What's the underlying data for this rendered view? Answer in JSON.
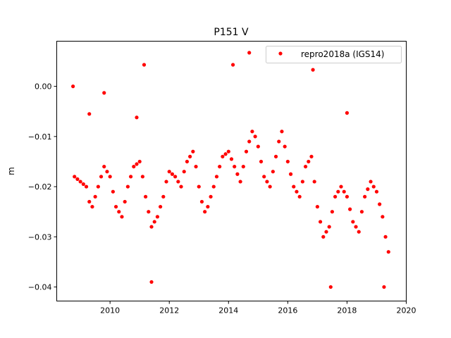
{
  "chart_data": {
    "type": "scatter",
    "title": "P151 V",
    "xlabel": "",
    "ylabel": "m",
    "xlim": [
      2008.2,
      2020.0
    ],
    "ylim": [
      -0.0428,
      0.009
    ],
    "xticks": [
      2010,
      2012,
      2014,
      2016,
      2018,
      2020
    ],
    "xtick_labels": [
      "2010",
      "2012",
      "2014",
      "2016",
      "2018",
      "2020"
    ],
    "yticks": [
      0.0,
      -0.01,
      -0.02,
      -0.03,
      -0.04
    ],
    "ytick_labels": [
      "0.00",
      "−0.01",
      "−0.02",
      "−0.03",
      "−0.04"
    ],
    "grid": false,
    "legend": {
      "position": "top-right",
      "entries": [
        "repro2018a (IGS14)"
      ]
    },
    "series": [
      {
        "name": "repro2018a (IGS14)",
        "color": "#ff0000",
        "x": [
          2008.8,
          2008.9,
          2009.0,
          2009.1,
          2009.2,
          2009.3,
          2009.4,
          2009.5,
          2009.6,
          2009.7,
          2009.8,
          2009.9,
          2010.0,
          2010.1,
          2010.2,
          2010.3,
          2010.4,
          2010.5,
          2010.6,
          2010.7,
          2010.8,
          2010.9,
          2011.0,
          2011.1,
          2011.2,
          2011.3,
          2011.4,
          2011.5,
          2011.6,
          2011.7,
          2011.8,
          2011.9,
          2012.0,
          2012.1,
          2012.2,
          2012.3,
          2012.4,
          2012.5,
          2012.6,
          2012.7,
          2012.8,
          2012.9,
          2013.0,
          2013.1,
          2013.2,
          2013.3,
          2013.4,
          2013.5,
          2013.6,
          2013.7,
          2013.8,
          2013.9,
          2014.0,
          2014.1,
          2014.2,
          2014.3,
          2014.4,
          2014.5,
          2014.6,
          2014.7,
          2014.8,
          2014.9,
          2015.0,
          2015.1,
          2015.2,
          2015.3,
          2015.4,
          2015.5,
          2015.6,
          2015.7,
          2015.8,
          2015.9,
          2016.0,
          2016.1,
          2016.2,
          2016.3,
          2016.4,
          2016.5,
          2016.6,
          2016.7,
          2016.8,
          2016.9,
          2017.0,
          2017.1,
          2017.2,
          2017.3,
          2017.4,
          2017.5,
          2017.6,
          2017.7,
          2017.8,
          2017.9,
          2018.0,
          2018.1,
          2018.2,
          2018.3,
          2018.4,
          2018.5,
          2018.6,
          2018.7,
          2018.8,
          2018.9,
          2019.0,
          2019.1,
          2019.2,
          2019.3,
          2019.4,
          2008.75,
          2009.8,
          2011.15,
          2014.15,
          2014.7,
          2016.85,
          2011.4,
          2017.45,
          2019.25,
          2009.3,
          2010.9,
          2018.0
        ],
        "y": [
          -0.018,
          -0.0185,
          -0.019,
          -0.0195,
          -0.02,
          -0.023,
          -0.024,
          -0.022,
          -0.02,
          -0.018,
          -0.016,
          -0.017,
          -0.018,
          -0.021,
          -0.024,
          -0.025,
          -0.026,
          -0.023,
          -0.02,
          -0.018,
          -0.016,
          -0.0155,
          -0.015,
          -0.018,
          -0.022,
          -0.025,
          -0.028,
          -0.027,
          -0.026,
          -0.024,
          -0.022,
          -0.019,
          -0.017,
          -0.0175,
          -0.018,
          -0.019,
          -0.02,
          -0.017,
          -0.015,
          -0.014,
          -0.013,
          -0.016,
          -0.02,
          -0.023,
          -0.025,
          -0.024,
          -0.022,
          -0.02,
          -0.018,
          -0.016,
          -0.014,
          -0.0135,
          -0.013,
          -0.0145,
          -0.016,
          -0.0175,
          -0.019,
          -0.016,
          -0.013,
          -0.011,
          -0.009,
          -0.01,
          -0.012,
          -0.015,
          -0.018,
          -0.019,
          -0.02,
          -0.017,
          -0.014,
          -0.011,
          -0.009,
          -0.012,
          -0.015,
          -0.0175,
          -0.02,
          -0.021,
          -0.022,
          -0.019,
          -0.016,
          -0.015,
          -0.014,
          -0.019,
          -0.024,
          -0.027,
          -0.03,
          -0.029,
          -0.028,
          -0.025,
          -0.022,
          -0.021,
          -0.02,
          -0.021,
          -0.022,
          -0.0245,
          -0.027,
          -0.028,
          -0.029,
          -0.025,
          -0.022,
          -0.0205,
          -0.019,
          -0.02,
          -0.021,
          -0.0235,
          -0.026,
          -0.03,
          -0.033,
          0.0,
          -0.0013,
          0.0043,
          0.0043,
          0.0067,
          0.0033,
          -0.039,
          -0.04,
          -0.04,
          -0.0055,
          -0.0062,
          -0.0053
        ]
      }
    ]
  }
}
